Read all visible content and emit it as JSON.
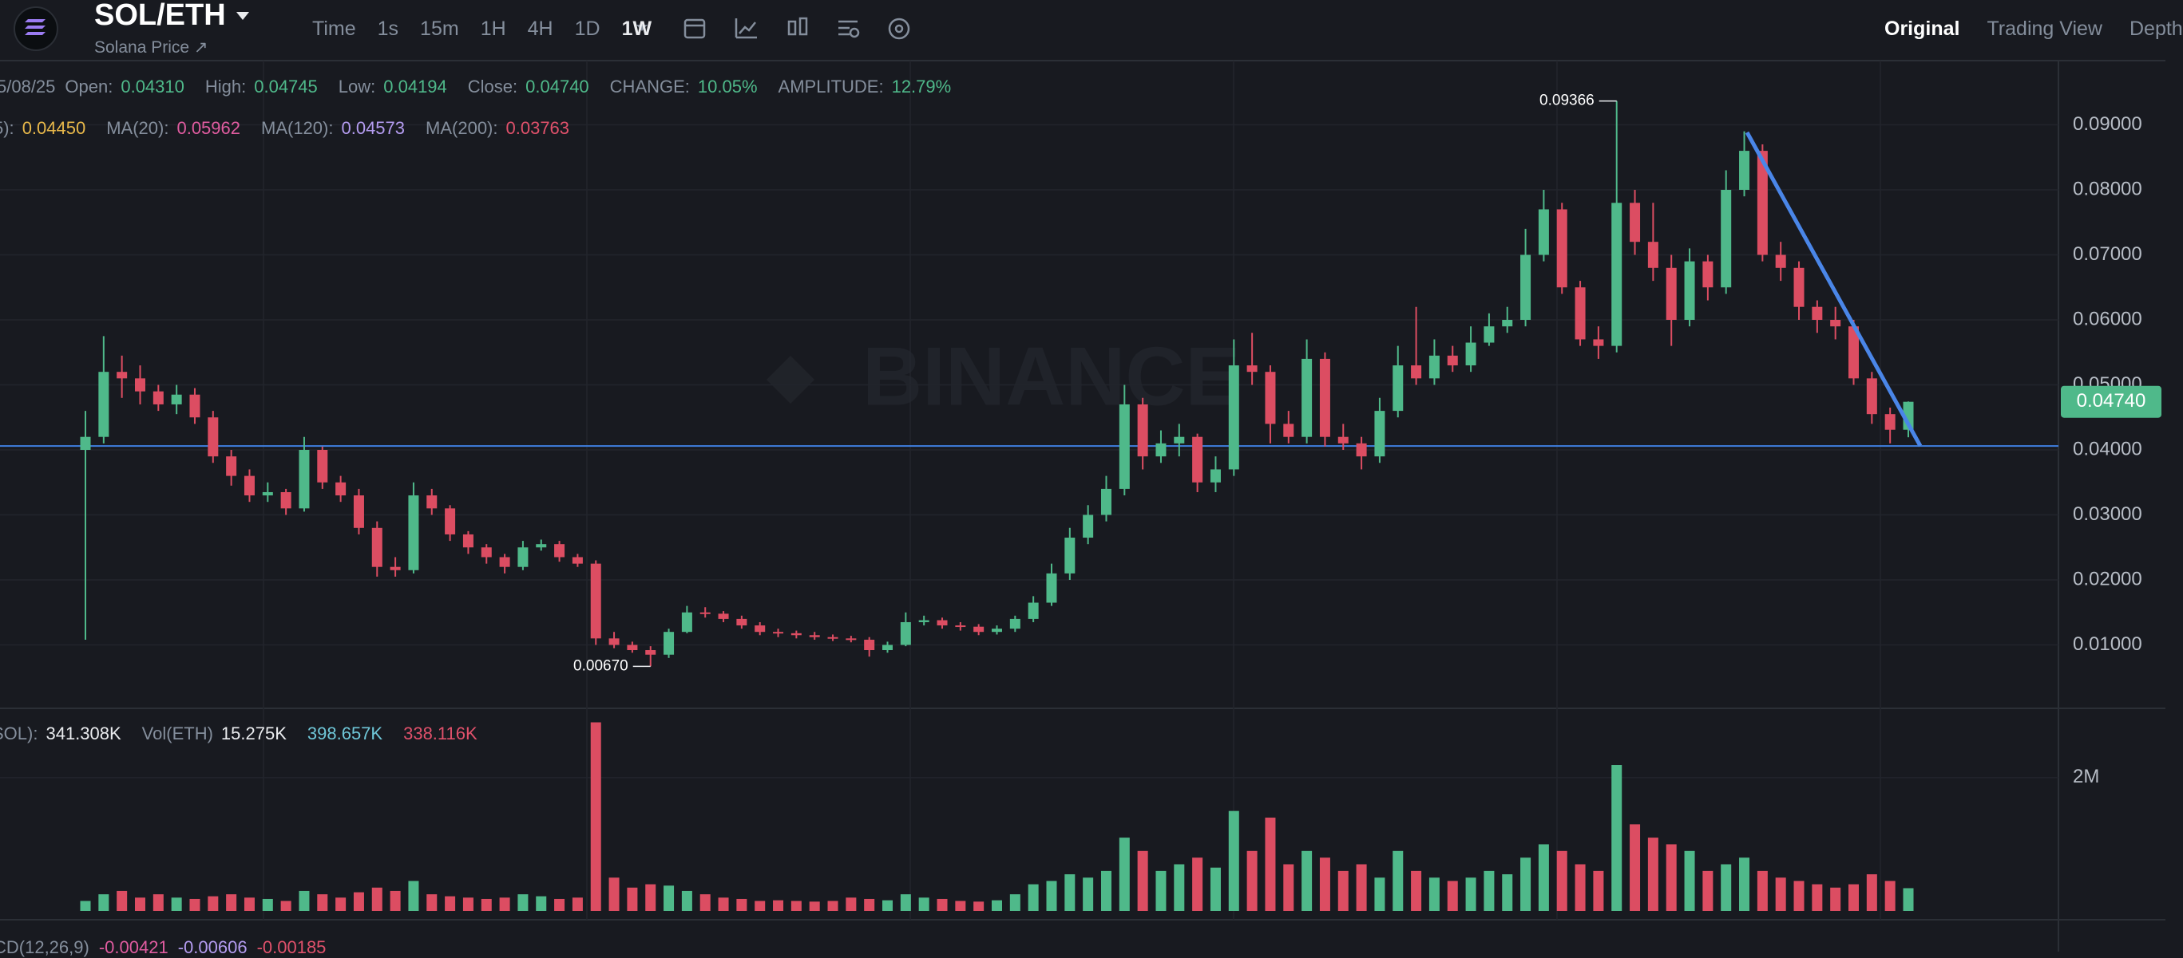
{
  "header": {
    "pair": "SOL/ETH",
    "subtitle": "Solana Price ↗",
    "intervals": [
      "Time",
      "1s",
      "15m",
      "1H",
      "4H",
      "1D",
      "1W"
    ],
    "views": [
      "Original",
      "Trading View",
      "Depth"
    ]
  },
  "info": {
    "date": "5/08/25",
    "color": "#4fb98a",
    "items": [
      {
        "label": "Open:",
        "value": "0.04310"
      },
      {
        "label": "High:",
        "value": "0.04745"
      },
      {
        "label": "Low:",
        "value": "0.04194"
      },
      {
        "label": "Close:",
        "value": "0.04740"
      },
      {
        "label": "CHANGE:",
        "value": "10.05%"
      },
      {
        "label": "AMPLITUDE:",
        "value": "12.79%"
      }
    ]
  },
  "ma": [
    {
      "label": "5):",
      "value": "0.04450",
      "color": "#e8b84a"
    },
    {
      "label": "MA(20):",
      "value": "0.05962",
      "color": "#e05ca0"
    },
    {
      "label": "MA(120):",
      "value": "0.04573",
      "color": "#b49cf0"
    },
    {
      "label": "MA(200):",
      "value": "0.03763",
      "color": "#e0516b"
    }
  ],
  "volume_info": [
    {
      "label": "SOL):",
      "value": "341.308K",
      "color": "#eaecef"
    },
    {
      "label": "Vol(ETH)",
      "value": "15.275K",
      "color": "#eaecef"
    },
    {
      "value": "398.657K",
      "color": "#6fc7d8"
    },
    {
      "value": "338.116K",
      "color": "#e0516b"
    }
  ],
  "macd_info": {
    "label": "CD(12,26,9)",
    "values": [
      {
        "value": "-0.00421",
        "color": "#e05ca0"
      },
      {
        "value": "-0.00606",
        "color": "#b49cf0"
      },
      {
        "value": "-0.00185",
        "color": "#e0516b"
      }
    ]
  },
  "chart_data": [
    {
      "type": "candlestick",
      "up_color": "#4fb98a",
      "down_color": "#dc4d62",
      "grid": true,
      "ylim": [
        0,
        0.1
      ],
      "yticks": [
        {
          "value": 0.01,
          "label": "0.01000"
        },
        {
          "value": 0.02,
          "label": "0.02000"
        },
        {
          "value": 0.03,
          "label": "0.03000"
        },
        {
          "value": 0.04,
          "label": "0.04000"
        },
        {
          "value": 0.05,
          "label": "0.05000"
        },
        {
          "value": 0.06,
          "label": "0.06000"
        },
        {
          "value": 0.07,
          "label": "0.07000"
        },
        {
          "value": 0.08,
          "label": "0.08000"
        },
        {
          "value": 0.09,
          "label": "0.09000"
        }
      ],
      "hline": {
        "value": 0.0406,
        "color": "#3f7fe0"
      },
      "last_price": {
        "value": 0.0474,
        "label": "0.04740"
      },
      "high_label": 0.09366,
      "low_label": {
        "value": 0.0067,
        "label": "0.00670"
      },
      "watermark": "BINANCE",
      "open": [
        0.04,
        0.042,
        0.052,
        0.051,
        0.049,
        0.047,
        0.0485,
        0.045,
        0.039,
        0.036,
        0.033,
        0.0335,
        0.031,
        0.04,
        0.035,
        0.033,
        0.028,
        0.022,
        0.0215,
        0.033,
        0.031,
        0.027,
        0.025,
        0.0235,
        0.022,
        0.025,
        0.0255,
        0.0235,
        0.0225,
        0.011,
        0.01,
        0.0092,
        0.0085,
        0.012,
        0.015,
        0.0148,
        0.014,
        0.013,
        0.012,
        0.0118,
        0.0115,
        0.0112,
        0.011,
        0.0108,
        0.0092,
        0.01,
        0.0135,
        0.0138,
        0.013,
        0.0128,
        0.012,
        0.0125,
        0.014,
        0.0165,
        0.021,
        0.0265,
        0.03,
        0.034,
        0.047,
        0.039,
        0.041,
        0.042,
        0.035,
        0.037,
        0.053,
        0.052,
        0.044,
        0.042,
        0.054,
        0.042,
        0.041,
        0.039,
        0.046,
        0.053,
        0.051,
        0.0545,
        0.053,
        0.0565,
        0.059,
        0.06,
        0.07,
        0.077,
        0.065,
        0.057,
        0.056,
        0.078,
        0.072,
        0.068,
        0.06,
        0.069,
        0.065,
        0.08,
        0.086,
        0.07,
        0.068,
        0.062,
        0.06,
        0.059,
        0.051,
        0.0455,
        0.0431
      ],
      "high": [
        0.046,
        0.0575,
        0.0545,
        0.053,
        0.05,
        0.05,
        0.0495,
        0.046,
        0.04,
        0.037,
        0.035,
        0.034,
        0.042,
        0.0405,
        0.036,
        0.034,
        0.029,
        0.0235,
        0.035,
        0.034,
        0.0315,
        0.0275,
        0.0255,
        0.024,
        0.026,
        0.0262,
        0.026,
        0.024,
        0.023,
        0.012,
        0.0105,
        0.0098,
        0.0125,
        0.016,
        0.0158,
        0.0152,
        0.0145,
        0.0135,
        0.0125,
        0.0122,
        0.012,
        0.0116,
        0.0114,
        0.0112,
        0.0105,
        0.015,
        0.0145,
        0.0142,
        0.0135,
        0.0132,
        0.013,
        0.0145,
        0.0175,
        0.0225,
        0.028,
        0.0315,
        0.036,
        0.05,
        0.048,
        0.043,
        0.044,
        0.0425,
        0.039,
        0.057,
        0.058,
        0.053,
        0.046,
        0.057,
        0.055,
        0.044,
        0.042,
        0.048,
        0.056,
        0.062,
        0.057,
        0.056,
        0.059,
        0.061,
        0.062,
        0.074,
        0.08,
        0.078,
        0.066,
        0.059,
        0.09366,
        0.08,
        0.078,
        0.07,
        0.071,
        0.07,
        0.083,
        0.089,
        0.087,
        0.072,
        0.069,
        0.063,
        0.062,
        0.06,
        0.052,
        0.0465,
        0.04745
      ],
      "low": [
        0.0108,
        0.041,
        0.048,
        0.047,
        0.046,
        0.0455,
        0.044,
        0.038,
        0.0345,
        0.032,
        0.032,
        0.03,
        0.0305,
        0.034,
        0.032,
        0.027,
        0.0205,
        0.0205,
        0.021,
        0.03,
        0.026,
        0.024,
        0.0225,
        0.021,
        0.0215,
        0.0245,
        0.0228,
        0.022,
        0.01,
        0.0095,
        0.0088,
        0.0067,
        0.008,
        0.0118,
        0.0142,
        0.0135,
        0.0125,
        0.0115,
        0.0112,
        0.011,
        0.0108,
        0.0106,
        0.0104,
        0.0082,
        0.0088,
        0.0098,
        0.013,
        0.0125,
        0.0122,
        0.0115,
        0.0116,
        0.012,
        0.0135,
        0.016,
        0.02,
        0.0255,
        0.029,
        0.033,
        0.037,
        0.038,
        0.039,
        0.0335,
        0.0335,
        0.036,
        0.05,
        0.041,
        0.041,
        0.041,
        0.0405,
        0.04,
        0.037,
        0.038,
        0.045,
        0.05,
        0.05,
        0.052,
        0.052,
        0.056,
        0.058,
        0.059,
        0.069,
        0.064,
        0.056,
        0.054,
        0.055,
        0.07,
        0.066,
        0.056,
        0.059,
        0.063,
        0.064,
        0.079,
        0.069,
        0.066,
        0.06,
        0.058,
        0.057,
        0.05,
        0.044,
        0.041,
        0.04194
      ],
      "close": [
        0.042,
        0.052,
        0.051,
        0.049,
        0.047,
        0.0485,
        0.045,
        0.039,
        0.036,
        0.033,
        0.0335,
        0.031,
        0.04,
        0.035,
        0.033,
        0.028,
        0.022,
        0.0215,
        0.033,
        0.031,
        0.027,
        0.025,
        0.0235,
        0.022,
        0.025,
        0.0255,
        0.0235,
        0.0225,
        0.011,
        0.01,
        0.0092,
        0.0085,
        0.012,
        0.015,
        0.0148,
        0.014,
        0.013,
        0.012,
        0.0118,
        0.0115,
        0.0112,
        0.011,
        0.0108,
        0.0092,
        0.01,
        0.0135,
        0.0138,
        0.013,
        0.0128,
        0.012,
        0.0125,
        0.014,
        0.0165,
        0.021,
        0.0265,
        0.03,
        0.034,
        0.047,
        0.039,
        0.041,
        0.042,
        0.035,
        0.037,
        0.053,
        0.052,
        0.044,
        0.042,
        0.054,
        0.042,
        0.041,
        0.039,
        0.046,
        0.053,
        0.051,
        0.0545,
        0.053,
        0.0565,
        0.059,
        0.06,
        0.07,
        0.077,
        0.065,
        0.057,
        0.056,
        0.078,
        0.072,
        0.068,
        0.06,
        0.069,
        0.065,
        0.08,
        0.086,
        0.07,
        0.068,
        0.062,
        0.06,
        0.059,
        0.051,
        0.0455,
        0.0431,
        0.0474
      ]
    },
    {
      "type": "bar",
      "grid": true,
      "ylim": [
        0,
        3040000
      ],
      "yticks": [
        {
          "value": 2000000,
          "label": "2M"
        }
      ],
      "values": [
        150000,
        250000,
        300000,
        200000,
        250000,
        200000,
        180000,
        220000,
        250000,
        200000,
        180000,
        150000,
        300000,
        250000,
        200000,
        280000,
        350000,
        300000,
        450000,
        250000,
        220000,
        200000,
        180000,
        200000,
        250000,
        220000,
        180000,
        200000,
        2830000,
        500000,
        350000,
        400000,
        380000,
        300000,
        250000,
        200000,
        180000,
        150000,
        160000,
        150000,
        140000,
        150000,
        200000,
        180000,
        160000,
        250000,
        200000,
        180000,
        150000,
        140000,
        160000,
        250000,
        400000,
        450000,
        550000,
        500000,
        600000,
        1100000,
        900000,
        600000,
        700000,
        800000,
        650000,
        1500000,
        900000,
        1400000,
        700000,
        900000,
        800000,
        600000,
        700000,
        500000,
        900000,
        600000,
        500000,
        450000,
        500000,
        600000,
        550000,
        800000,
        1000000,
        900000,
        700000,
        600000,
        2190000,
        1300000,
        1100000,
        1000000,
        900000,
        600000,
        700000,
        800000,
        600000,
        500000,
        450000,
        400000,
        350000,
        400000,
        550000,
        450000,
        341308
      ]
    }
  ]
}
